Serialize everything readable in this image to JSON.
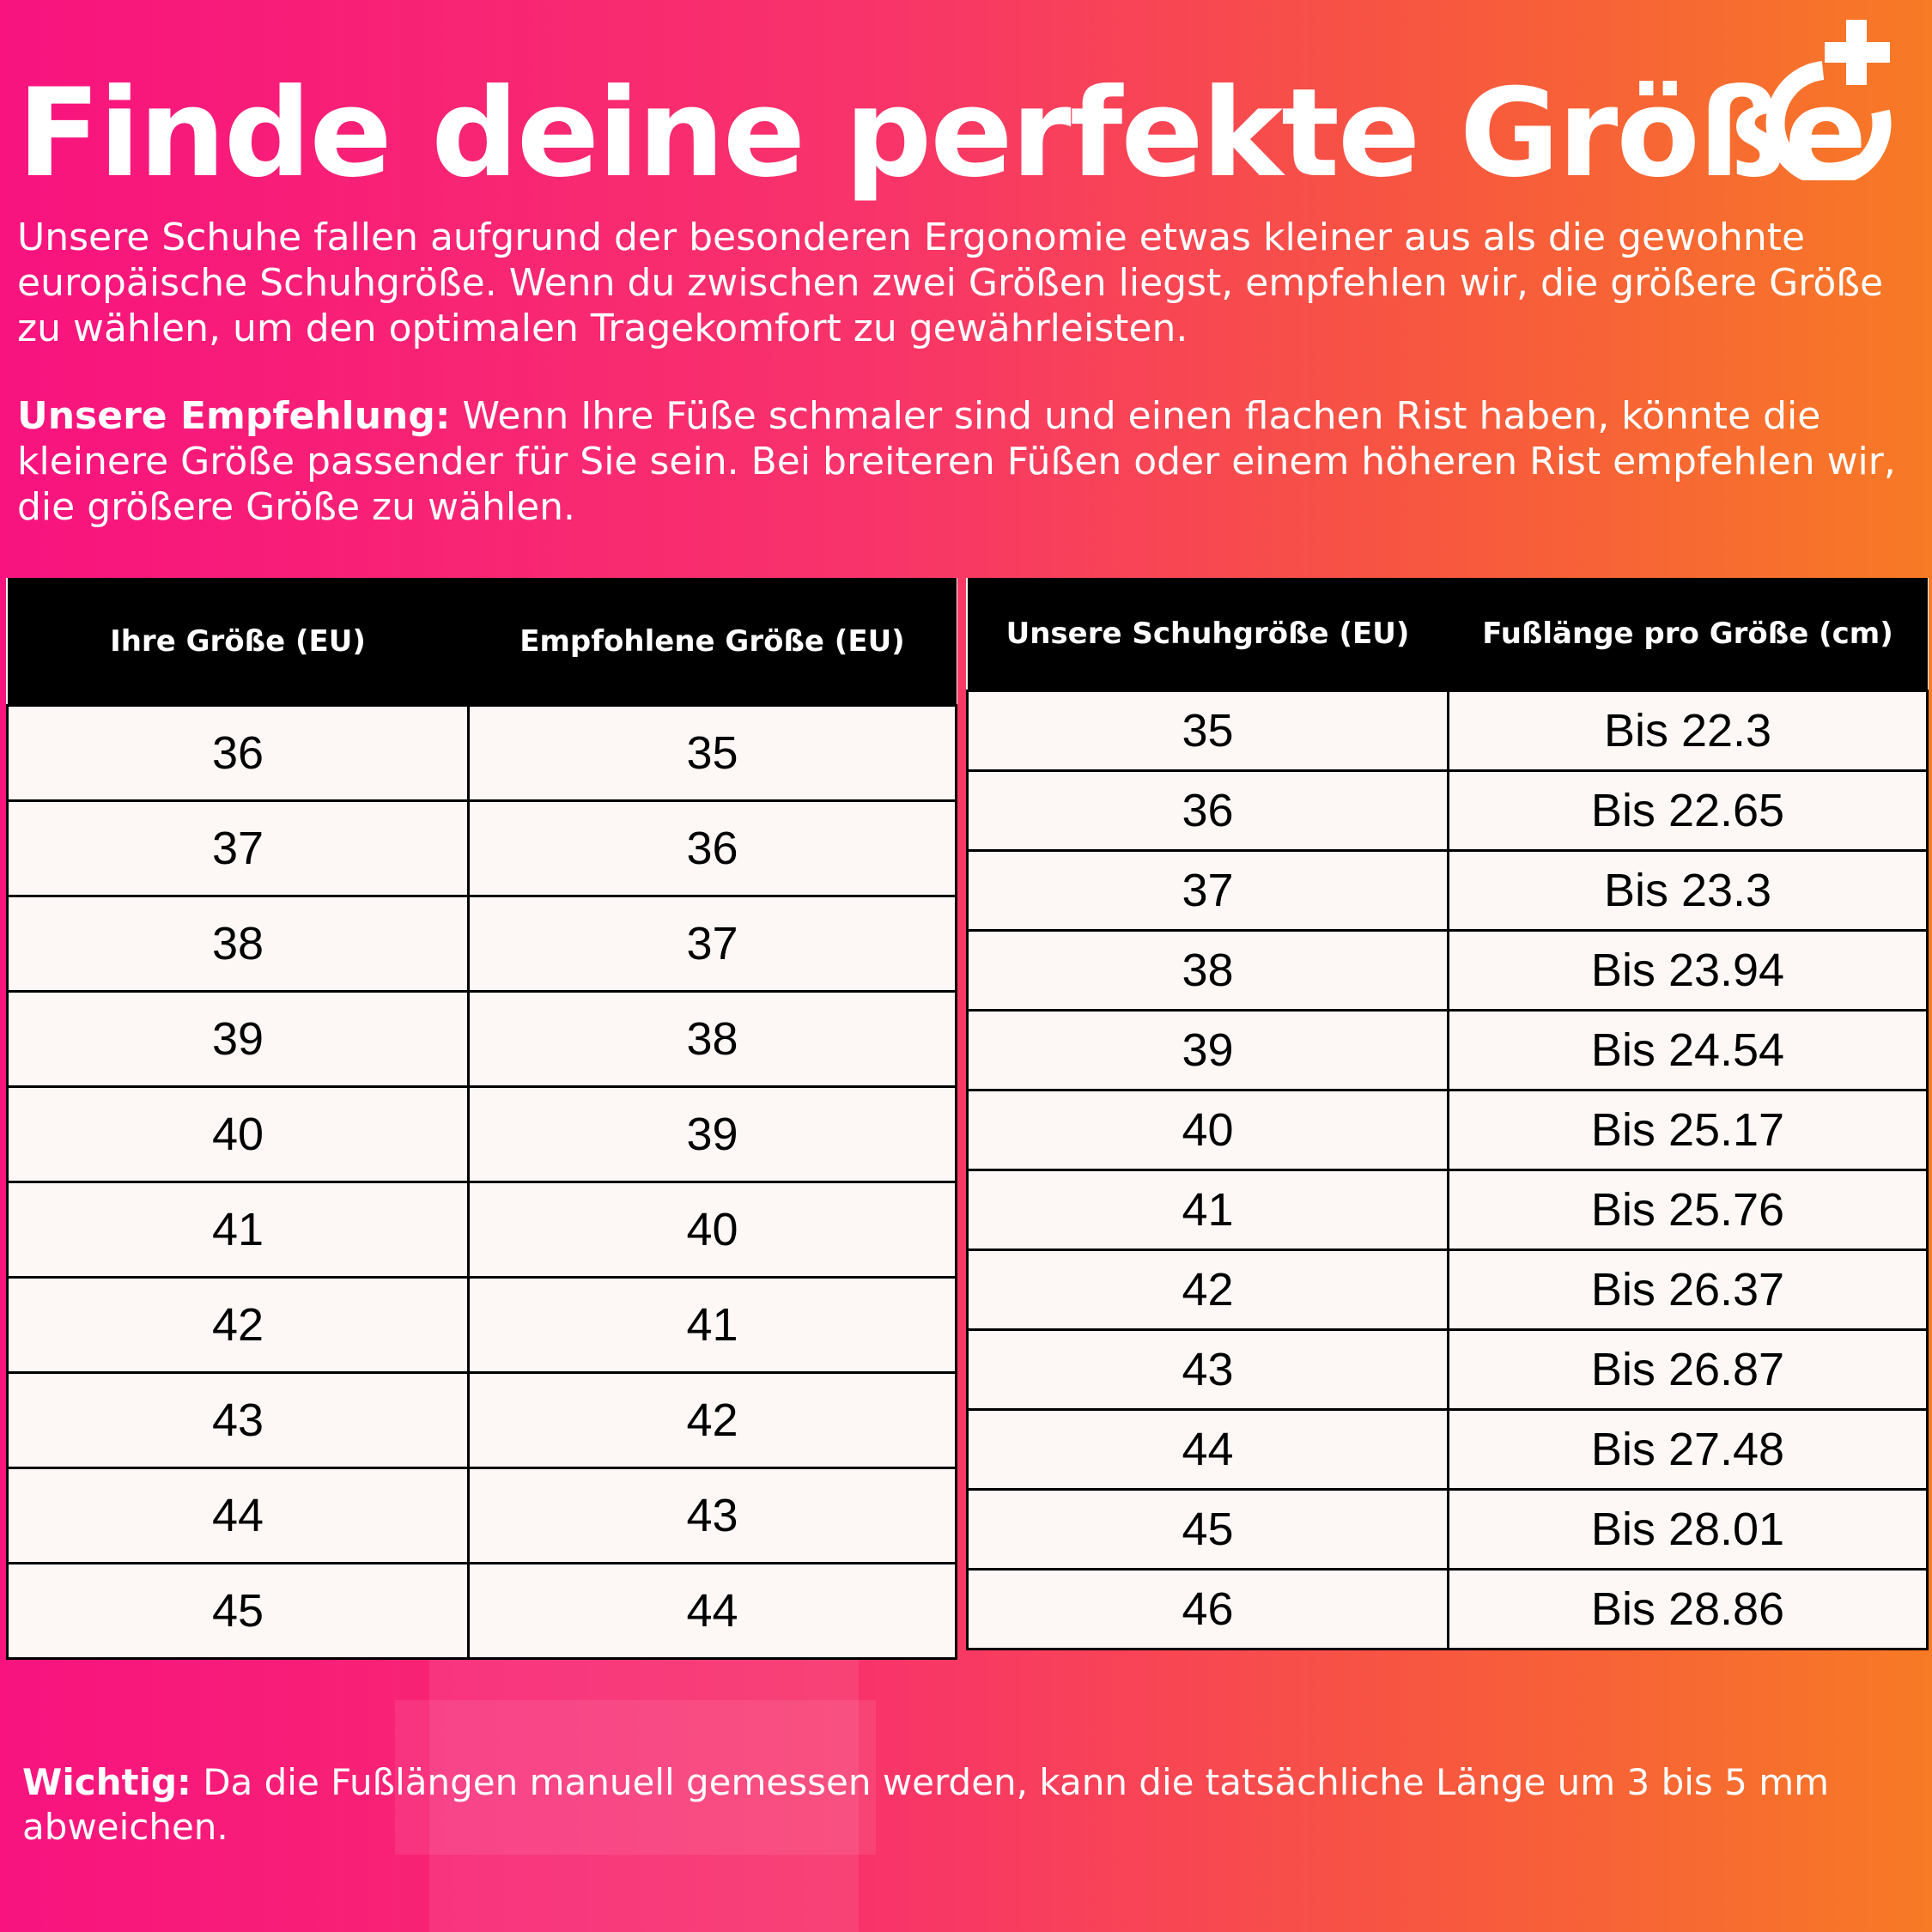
{
  "header": {
    "title": "Finde deine perfekte Größe",
    "intro": "Unsere Schuhe fallen aufgrund der besonderen Ergonomie etwas kleiner aus als die gewohnte europäische Schuhgröße. Wenn du zwischen zwei Größen liegst, empfehlen wir, die größere Größe zu wählen, um den optimalen Tragekomfort zu gewährleisten.",
    "recommendation_label": "Unsere Empfehlung:",
    "recommendation_text": " Wenn Ihre Füße schmaler sind und einen flachen Rist haben, könnte die kleinere Größe passender für Sie sein. Bei breiteren Füßen oder einem höheren Rist empfehlen wir, die größere Größe zu wählen.",
    "logo_icon": "circle-plus-logo"
  },
  "conversion_table": {
    "headers": [
      "Ihre Größe (EU)",
      "Empfohlene Größe (EU)"
    ],
    "rows": [
      [
        "36",
        "35"
      ],
      [
        "37",
        "36"
      ],
      [
        "38",
        "37"
      ],
      [
        "39",
        "38"
      ],
      [
        "40",
        "39"
      ],
      [
        "41",
        "40"
      ],
      [
        "42",
        "41"
      ],
      [
        "43",
        "42"
      ],
      [
        "44",
        "43"
      ],
      [
        "45",
        "44"
      ]
    ]
  },
  "length_table": {
    "headers": [
      "Unsere Schuhgröße (EU)",
      "Fußlänge pro Größe (cm)"
    ],
    "rows": [
      [
        "35",
        "Bis 22.3"
      ],
      [
        "36",
        "Bis 22.65"
      ],
      [
        "37",
        "Bis 23.3"
      ],
      [
        "38",
        "Bis 23.94"
      ],
      [
        "39",
        "Bis 24.54"
      ],
      [
        "40",
        "Bis 25.17"
      ],
      [
        "41",
        "Bis 25.76"
      ],
      [
        "42",
        "Bis 26.37"
      ],
      [
        "43",
        "Bis 26.87"
      ],
      [
        "44",
        "Bis 27.48"
      ],
      [
        "45",
        "Bis 28.01"
      ],
      [
        "46",
        "Bis 28.86"
      ]
    ]
  },
  "footer": {
    "note_label": "Wichtig:",
    "note_text": " Da die Fußlängen manuell gemessen werden, kann die tatsächliche Länge um 3 bis 5 mm abweichen."
  },
  "colors": {
    "gradient_start": "#f8137f",
    "gradient_end": "#f77a25",
    "table_header": "#000000",
    "table_cell": "#fdf8f5"
  }
}
